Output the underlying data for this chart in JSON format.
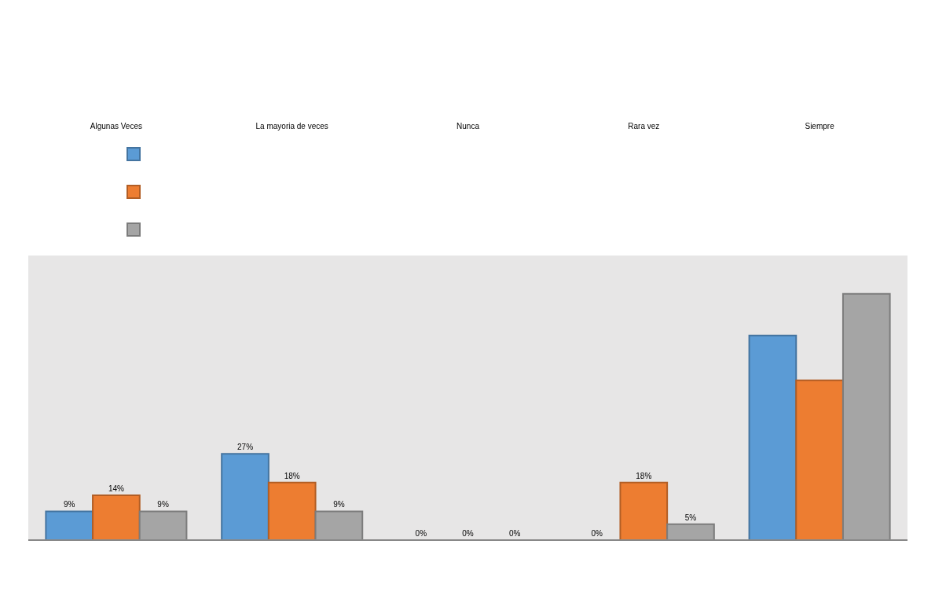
{
  "chart_data": {
    "type": "bar",
    "categories": [
      "Algunas Veces",
      "La mayoria de veces",
      "Nunca",
      "Rara vez",
      "Siempre"
    ],
    "series": [
      {
        "color": "#5b9bd5",
        "values": [
          9,
          27,
          0,
          0,
          64
        ],
        "value_labels": [
          "9%",
          "27%",
          "0%",
          "0%",
          null
        ]
      },
      {
        "color": "#ed7d31",
        "values": [
          14,
          18,
          0,
          18,
          50
        ],
        "value_labels": [
          "14%",
          "18%",
          "0%",
          "18%",
          null
        ]
      },
      {
        "color": "#a5a5a5",
        "values": [
          9,
          9,
          0,
          5,
          77
        ],
        "value_labels": [
          "9%",
          "9%",
          "0%",
          "5%",
          null
        ]
      }
    ],
    "ylim": [
      0,
      89
    ],
    "tick_labels": "x"
  }
}
